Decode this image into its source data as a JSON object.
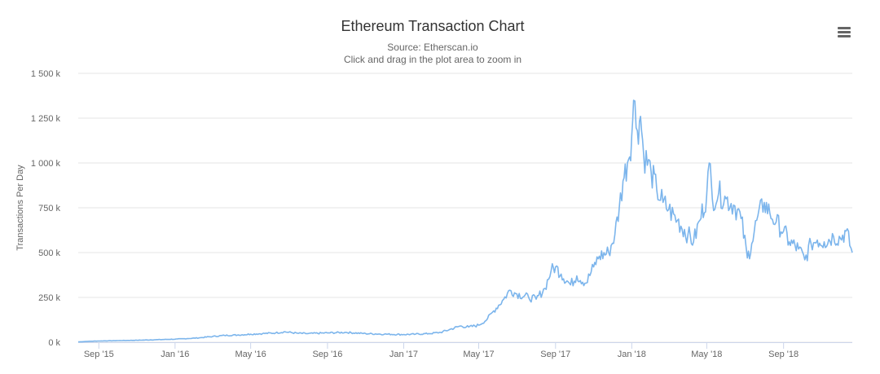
{
  "chart_data": {
    "type": "line",
    "title": "Ethereum Transaction Chart",
    "subtitle": "Source: Etherscan.io",
    "subtitle2": "Click and drag in the plot area to zoom in",
    "ylabel": "Transactions Per Day",
    "xlabel": "",
    "ylim": [
      0,
      1500000
    ],
    "xlim": [
      "2015-07-30",
      "2018-12-20"
    ],
    "y_ticks": [
      {
        "value": 0,
        "label": "0 k"
      },
      {
        "value": 250000,
        "label": "250 k"
      },
      {
        "value": 500000,
        "label": "500 k"
      },
      {
        "value": 750000,
        "label": "750 k"
      },
      {
        "value": 1000000,
        "label": "1 000 k"
      },
      {
        "value": 1250000,
        "label": "1 250 k"
      },
      {
        "value": 1500000,
        "label": "1 500 k"
      }
    ],
    "x_ticks": [
      {
        "date": "2015-09-01",
        "label": "Sep '15"
      },
      {
        "date": "2016-01-01",
        "label": "Jan '16"
      },
      {
        "date": "2016-05-01",
        "label": "May '16"
      },
      {
        "date": "2016-09-01",
        "label": "Sep '16"
      },
      {
        "date": "2017-01-01",
        "label": "Jan '17"
      },
      {
        "date": "2017-05-01",
        "label": "May '17"
      },
      {
        "date": "2017-09-01",
        "label": "Sep '17"
      },
      {
        "date": "2018-01-01",
        "label": "Jan '18"
      },
      {
        "date": "2018-05-01",
        "label": "May '18"
      },
      {
        "date": "2018-09-01",
        "label": "Sep '18"
      }
    ],
    "grid": true,
    "legend": "none",
    "series": [
      {
        "color": "#7cb5ec",
        "points": [
          [
            "2015-07-30",
            2000
          ],
          [
            "2015-08-15",
            5000
          ],
          [
            "2015-09-01",
            7000
          ],
          [
            "2015-10-01",
            9000
          ],
          [
            "2015-11-01",
            11000
          ],
          [
            "2015-12-01",
            14000
          ],
          [
            "2016-01-01",
            17000
          ],
          [
            "2016-01-20",
            20000
          ],
          [
            "2016-02-10",
            25000
          ],
          [
            "2016-03-01",
            32000
          ],
          [
            "2016-03-20",
            38000
          ],
          [
            "2016-04-10",
            40000
          ],
          [
            "2016-05-01",
            45000
          ],
          [
            "2016-05-20",
            48000
          ],
          [
            "2016-06-10",
            52000
          ],
          [
            "2016-06-25",
            58000
          ],
          [
            "2016-07-15",
            50000
          ],
          [
            "2016-08-01",
            48000
          ],
          [
            "2016-09-01",
            52000
          ],
          [
            "2016-10-01",
            55000
          ],
          [
            "2016-11-01",
            48000
          ],
          [
            "2016-12-01",
            45000
          ],
          [
            "2017-01-01",
            43000
          ],
          [
            "2017-01-20",
            45000
          ],
          [
            "2017-02-10",
            48000
          ],
          [
            "2017-03-01",
            55000
          ],
          [
            "2017-03-15",
            70000
          ],
          [
            "2017-04-01",
            90000
          ],
          [
            "2017-04-15",
            85000
          ],
          [
            "2017-05-01",
            95000
          ],
          [
            "2017-05-15",
            130000
          ],
          [
            "2017-05-25",
            175000
          ],
          [
            "2017-06-10",
            240000
          ],
          [
            "2017-06-20",
            290000
          ],
          [
            "2017-07-01",
            270000
          ],
          [
            "2017-07-20",
            250000
          ],
          [
            "2017-08-01",
            240000
          ],
          [
            "2017-08-15",
            300000
          ],
          [
            "2017-08-25",
            400000
          ],
          [
            "2017-09-01",
            420000
          ],
          [
            "2017-09-10",
            380000
          ],
          [
            "2017-09-25",
            320000
          ],
          [
            "2017-10-05",
            370000
          ],
          [
            "2017-10-20",
            330000
          ],
          [
            "2017-11-01",
            420000
          ],
          [
            "2017-11-10",
            480000
          ],
          [
            "2017-11-25",
            500000
          ],
          [
            "2017-12-05",
            600000
          ],
          [
            "2017-12-12",
            750000
          ],
          [
            "2017-12-18",
            900000
          ],
          [
            "2017-12-25",
            1000000
          ],
          [
            "2018-01-01",
            1150000
          ],
          [
            "2018-01-04",
            1349890
          ],
          [
            "2018-01-10",
            1180000
          ],
          [
            "2018-01-15",
            1260000
          ],
          [
            "2018-01-20",
            1050000
          ],
          [
            "2018-02-01",
            950000
          ],
          [
            "2018-02-10",
            850000
          ],
          [
            "2018-02-20",
            780000
          ],
          [
            "2018-03-01",
            740000
          ],
          [
            "2018-03-15",
            680000
          ],
          [
            "2018-04-01",
            600000
          ],
          [
            "2018-04-10",
            560000
          ],
          [
            "2018-04-20",
            680000
          ],
          [
            "2018-05-01",
            820000
          ],
          [
            "2018-05-05",
            1000000
          ],
          [
            "2018-05-10",
            800000
          ],
          [
            "2018-05-20",
            830000
          ],
          [
            "2018-06-01",
            800000
          ],
          [
            "2018-06-15",
            760000
          ],
          [
            "2018-06-25",
            690000
          ],
          [
            "2018-07-05",
            470000
          ],
          [
            "2018-07-12",
            550000
          ],
          [
            "2018-07-20",
            680000
          ],
          [
            "2018-08-01",
            780000
          ],
          [
            "2018-08-10",
            720000
          ],
          [
            "2018-08-20",
            670000
          ],
          [
            "2018-09-01",
            620000
          ],
          [
            "2018-09-10",
            560000
          ],
          [
            "2018-09-25",
            520000
          ],
          [
            "2018-10-05",
            460000
          ],
          [
            "2018-10-15",
            550000
          ],
          [
            "2018-10-25",
            570000
          ],
          [
            "2018-11-05",
            560000
          ],
          [
            "2018-11-20",
            590000
          ],
          [
            "2018-12-01",
            580000
          ],
          [
            "2018-12-10",
            620000
          ],
          [
            "2018-12-20",
            500000
          ]
        ]
      }
    ]
  }
}
